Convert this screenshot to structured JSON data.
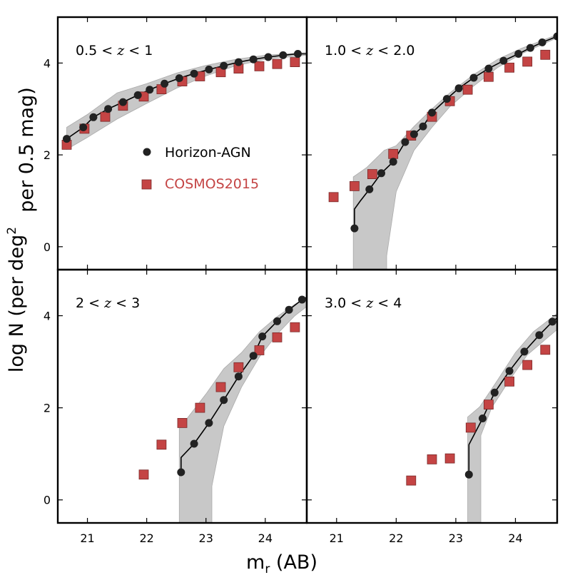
{
  "chart_data": {
    "type": "scatter",
    "layout": "2x2 panels, shared axes",
    "xlabel": "m_r (AB)",
    "xlabel_main": "m",
    "xlabel_sub": "r",
    "xlabel_suffix": " (AB)",
    "ylabel": "log N (per deg^2 per 0.5 mag)",
    "ylabel_line1": "log N (per deg",
    "ylabel_sup": "2",
    "ylabel_line1_end": "",
    "ylabel_line2": "per 0.5 mag)",
    "xlim": [
      20.5,
      24.7
    ],
    "ylim": [
      -0.5,
      5.0
    ],
    "xticks": [
      21,
      22,
      23,
      24
    ],
    "xtick_labels": [
      "21",
      "22",
      "23",
      "24"
    ],
    "yticks": [
      0,
      2,
      4
    ],
    "ytick_labels": [
      "0",
      "2",
      "4"
    ],
    "legend": {
      "placement": "inside top-left panel",
      "entries": [
        {
          "label": "Horizon-AGN",
          "marker": "circle",
          "color": "#000000"
        },
        {
          "label": "COSMOS2015",
          "marker": "square",
          "color": "#c0392b"
        }
      ]
    },
    "colors": {
      "horizon": "#222222",
      "cosmos": "#c44444",
      "band": "#c8c8c8"
    },
    "panels": [
      {
        "label": "0.5 < z < 1",
        "label_parts": [
          "0.5",
          "<",
          "z",
          "<",
          "1"
        ],
        "horizon": {
          "x": [
            20.65,
            20.93,
            21.1,
            21.35,
            21.6,
            21.85,
            22.05,
            22.3,
            22.55,
            22.8,
            23.05,
            23.3,
            23.55,
            23.8,
            24.05,
            24.3,
            24.55
          ],
          "y": [
            2.35,
            2.6,
            2.82,
            3.0,
            3.15,
            3.3,
            3.42,
            3.55,
            3.67,
            3.77,
            3.86,
            3.94,
            4.02,
            4.08,
            4.13,
            4.17,
            4.2
          ]
        },
        "horizon_line": {
          "x": [
            20.65,
            20.93,
            21.1,
            21.35,
            21.6,
            21.85,
            22.05,
            22.3,
            22.55,
            22.8,
            23.05,
            23.3,
            23.55,
            23.8,
            24.05,
            24.3,
            24.55,
            24.7
          ],
          "y": [
            2.35,
            2.6,
            2.82,
            3.0,
            3.15,
            3.3,
            3.42,
            3.55,
            3.67,
            3.77,
            3.86,
            3.94,
            4.02,
            4.08,
            4.13,
            4.17,
            4.2,
            4.2
          ]
        },
        "cosmos": {
          "x": [
            20.65,
            20.95,
            21.3,
            21.6,
            21.95,
            22.25,
            22.6,
            22.9,
            23.25,
            23.55,
            23.9,
            24.2,
            24.5
          ],
          "y": [
            2.22,
            2.57,
            2.83,
            3.07,
            3.27,
            3.43,
            3.6,
            3.71,
            3.8,
            3.88,
            3.93,
            3.98,
            4.02
          ]
        },
        "band_upper": {
          "x": [
            20.65,
            21.0,
            21.5,
            22.0,
            22.5,
            23.0,
            23.5,
            24.0,
            24.7
          ],
          "y": [
            2.6,
            2.88,
            3.35,
            3.55,
            3.78,
            3.95,
            4.08,
            4.17,
            4.23
          ]
        },
        "band_lower": {
          "x": [
            20.65,
            21.0,
            21.5,
            22.0,
            22.5,
            23.0,
            23.5,
            24.0,
            24.7
          ],
          "y": [
            2.12,
            2.38,
            2.78,
            3.12,
            3.45,
            3.72,
            3.94,
            4.08,
            4.17
          ]
        }
      },
      {
        "label": "1.0 < z < 2.0",
        "label_parts": [
          "1.0",
          "<",
          "z",
          "<",
          "2.0"
        ],
        "horizon": {
          "x": [
            21.3,
            21.55,
            21.75,
            21.95,
            22.15,
            22.3,
            22.45,
            22.6,
            22.85,
            23.05,
            23.3,
            23.55,
            23.8,
            24.05,
            24.25,
            24.45,
            24.7
          ],
          "y": [
            0.4,
            1.25,
            1.6,
            1.85,
            2.28,
            2.45,
            2.62,
            2.92,
            3.22,
            3.45,
            3.68,
            3.88,
            4.05,
            4.2,
            4.33,
            4.45,
            4.58
          ]
        },
        "horizon_line": {
          "x": [
            21.3,
            21.3,
            21.4,
            21.55,
            21.75,
            21.95,
            22.15,
            22.3,
            22.45,
            22.6,
            22.85,
            23.05,
            23.3,
            23.55,
            23.8,
            24.05,
            24.25,
            24.45,
            24.7
          ],
          "y": [
            0.4,
            0.82,
            1.0,
            1.25,
            1.6,
            1.85,
            2.28,
            2.45,
            2.62,
            2.92,
            3.22,
            3.45,
            3.68,
            3.88,
            4.05,
            4.2,
            4.33,
            4.45,
            4.58
          ]
        },
        "cosmos": {
          "x": [
            20.95,
            21.3,
            21.6,
            21.95,
            22.25,
            22.6,
            22.9,
            23.2,
            23.55,
            23.9,
            24.2,
            24.5
          ],
          "y": [
            1.08,
            1.32,
            1.58,
            2.02,
            2.42,
            2.83,
            3.17,
            3.42,
            3.7,
            3.9,
            4.03,
            4.18
          ]
        },
        "band_upper": {
          "x": [
            21.28,
            21.5,
            21.8,
            22.0,
            22.3,
            22.6,
            22.9,
            23.3,
            23.7,
            24.1,
            24.7
          ],
          "y": [
            1.52,
            1.72,
            2.1,
            2.2,
            2.62,
            3.0,
            3.35,
            3.75,
            4.08,
            4.32,
            4.62
          ]
        },
        "band_lower": {
          "x": [
            21.28,
            21.84,
            21.84,
            22.0,
            22.3,
            22.6,
            22.9,
            23.3,
            23.7,
            24.1,
            24.7
          ],
          "y": [
            -0.5,
            -0.5,
            -0.2,
            1.2,
            2.1,
            2.6,
            3.05,
            3.5,
            3.9,
            4.2,
            4.55
          ]
        }
      },
      {
        "label": "2 < z < 3",
        "label_parts": [
          "2",
          "<",
          "z",
          "<",
          "3"
        ],
        "horizon": {
          "x": [
            22.58,
            22.8,
            23.05,
            23.3,
            23.55,
            23.8,
            23.95,
            24.2,
            24.4,
            24.62
          ],
          "y": [
            0.6,
            1.22,
            1.67,
            2.17,
            2.68,
            3.13,
            3.55,
            3.88,
            4.13,
            4.35
          ]
        },
        "horizon_line": {
          "x": [
            22.58,
            22.58,
            22.8,
            23.05,
            23.3,
            23.55,
            23.8,
            23.95,
            24.2,
            24.4,
            24.62,
            24.7
          ],
          "y": [
            0.6,
            0.92,
            1.22,
            1.67,
            2.17,
            2.68,
            3.13,
            3.55,
            3.88,
            4.13,
            4.35,
            4.4
          ]
        },
        "cosmos": {
          "x": [
            21.95,
            22.25,
            22.6,
            22.9,
            23.25,
            23.55,
            23.9,
            24.2,
            24.5
          ],
          "y": [
            0.55,
            1.2,
            1.67,
            2.0,
            2.45,
            2.88,
            3.25,
            3.53,
            3.75
          ]
        },
        "band_upper": {
          "x": [
            22.55,
            22.7,
            23.0,
            23.3,
            23.6,
            23.9,
            24.2,
            24.5,
            24.7
          ],
          "y": [
            1.55,
            1.8,
            2.3,
            2.85,
            3.2,
            3.65,
            3.98,
            4.25,
            4.4
          ]
        },
        "band_lower": {
          "x": [
            22.55,
            23.1,
            23.1,
            23.3,
            23.6,
            23.9,
            24.2,
            24.5,
            24.7
          ],
          "y": [
            -0.5,
            -0.5,
            0.3,
            1.6,
            2.45,
            3.1,
            3.6,
            4.0,
            4.2
          ]
        }
      },
      {
        "label": "3.0 < z < 4",
        "label_parts": [
          "3.0",
          "<",
          "z",
          "<",
          "4"
        ],
        "horizon": {
          "x": [
            23.22,
            23.45,
            23.65,
            23.9,
            24.15,
            24.4,
            24.62
          ],
          "y": [
            0.55,
            1.77,
            2.33,
            2.8,
            3.22,
            3.58,
            3.87
          ]
        },
        "horizon_line": {
          "x": [
            23.22,
            23.22,
            23.45,
            23.65,
            23.9,
            24.15,
            24.4,
            24.62,
            24.7
          ],
          "y": [
            0.55,
            1.2,
            1.77,
            2.33,
            2.8,
            3.22,
            3.58,
            3.87,
            3.95
          ]
        },
        "cosmos": {
          "x": [
            22.25,
            22.6,
            22.9,
            23.25,
            23.55,
            23.9,
            24.2,
            24.5
          ],
          "y": [
            0.42,
            0.88,
            0.9,
            1.57,
            2.07,
            2.57,
            2.93,
            3.26
          ]
        },
        "band_upper": {
          "x": [
            23.2,
            23.4,
            23.7,
            24.0,
            24.3,
            24.7
          ],
          "y": [
            1.8,
            2.02,
            2.6,
            3.2,
            3.65,
            4.05
          ]
        },
        "band_lower": {
          "x": [
            23.2,
            23.42,
            23.42,
            23.6,
            23.9,
            24.2,
            24.7
          ],
          "y": [
            -0.5,
            -0.5,
            1.4,
            2.0,
            2.6,
            3.15,
            3.7
          ]
        }
      }
    ]
  }
}
